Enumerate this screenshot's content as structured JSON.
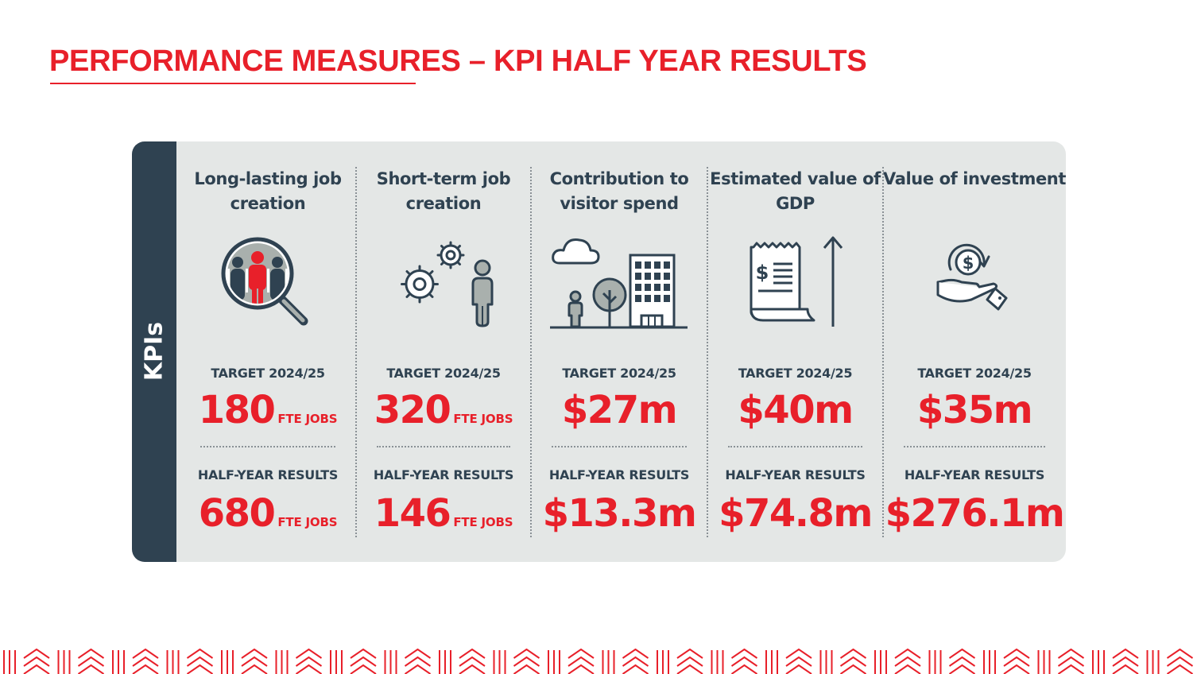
{
  "title": "PERFORMANCE MEASURES – KPI HALF YEAR RESULTS",
  "sidebar_label": "KPIs",
  "colors": {
    "accent": "#e8202a",
    "navy": "#2f4251",
    "panel": "#e4e7e6",
    "icon_grey": "#a9b0ad"
  },
  "kpis": [
    {
      "title": "Long-lasting job creation",
      "icon": "people-magnifier-icon",
      "target_label": "TARGET 2024/25",
      "target_value": "180",
      "target_unit": "FTE JOBS",
      "result_label": "HALF-YEAR RESULTS",
      "result_value": "680",
      "result_unit": "FTE JOBS"
    },
    {
      "title": "Short-term job creation",
      "icon": "gears-worker-icon",
      "target_label": "TARGET 2024/25",
      "target_value": "320",
      "target_unit": "FTE JOBS",
      "result_label": "HALF-YEAR RESULTS",
      "result_value": "146",
      "result_unit": "FTE JOBS"
    },
    {
      "title": "Contribution to visitor spend",
      "icon": "city-visitor-icon",
      "target_label": "TARGET 2024/25",
      "target_value": "$27m",
      "result_label": "HALF-YEAR RESULTS",
      "result_value": "$13.3m"
    },
    {
      "title": "Estimated value of GDP",
      "icon": "receipt-growth-icon",
      "target_label": "TARGET 2024/25",
      "target_value": "$40m",
      "result_label": "HALF-YEAR RESULTS",
      "result_value": "$74.8m"
    },
    {
      "title": "Value of investment",
      "icon": "hand-dollar-icon",
      "target_label": "TARGET 2024/25",
      "target_value": "$35m",
      "result_label": "HALF-YEAR RESULTS",
      "result_value": "$276.1m"
    }
  ]
}
